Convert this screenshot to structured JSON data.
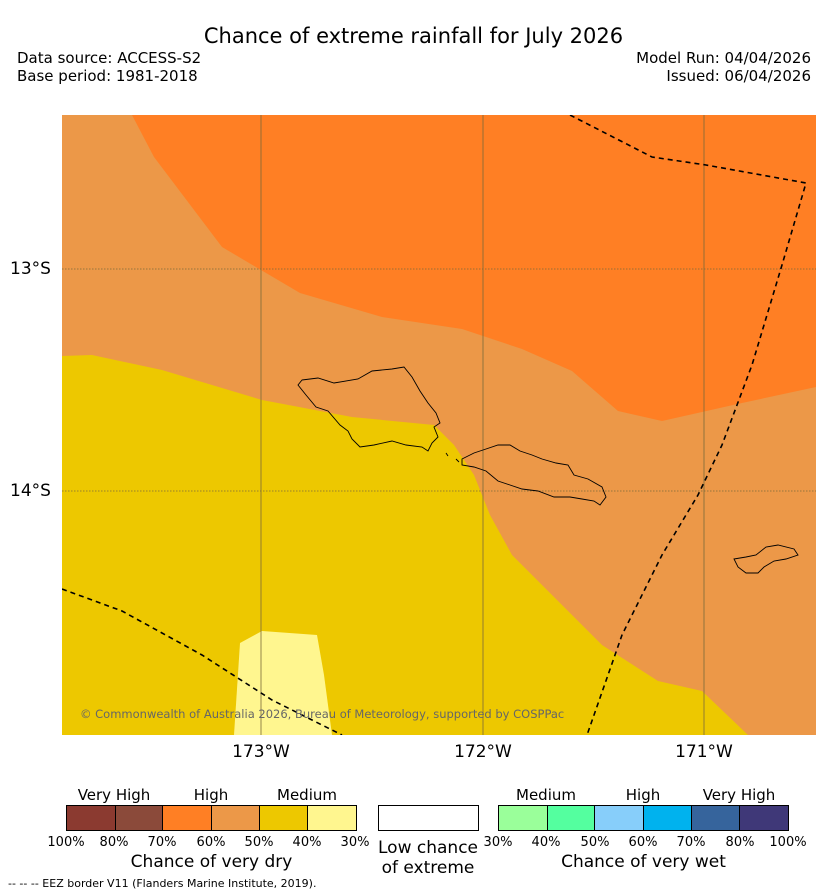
{
  "header": {
    "title": "Chance of extreme rainfall for July 2026",
    "data_source": "Data source: ACCESS-S2",
    "base_period": "Base period: 1981-2018",
    "model_run": "Model Run: 04/04/2026",
    "issued": "Issued: 06/04/2026"
  },
  "map": {
    "lat_labels": [
      "13°S",
      "14°S"
    ],
    "lon_labels": [
      "173°W",
      "172°W",
      "171°W"
    ],
    "copyright": "© Commonwealth of Australia 2026, Bureau of Meteorology, supported by COSPPac",
    "colors": {
      "very_high_dry_80": "#8B3A30",
      "very_high_dry_70": "#8B4A3A",
      "high_dry_60": "#FF7F24",
      "high_dry_50": "#EC9848",
      "medium_dry_40": "#EDC800",
      "medium_dry_30": "#FFF68F",
      "low": "#FFFFFF",
      "medium_wet_40": "#9AFF9A",
      "medium_wet_50": "#54FF9F",
      "high_wet_60": "#87CEFA",
      "high_wet_70": "#00B2EE",
      "very_high_wet_80": "#36649C",
      "very_high_wet_100": "#3F3878"
    }
  },
  "legend": {
    "dry": {
      "categories": [
        "Very High",
        "High",
        "Medium"
      ],
      "ticks": [
        "100%",
        "80%",
        "70%",
        "60%",
        "50%",
        "40%",
        "30%"
      ],
      "title": "Chance of very dry",
      "swatches": [
        "#8B3A30",
        "#8B4A3A",
        "#FF7F24",
        "#EC9848",
        "#EDC800",
        "#FFF68F"
      ]
    },
    "low": {
      "line1": "Low chance",
      "line2": "of extreme"
    },
    "wet": {
      "categories": [
        "Medium",
        "High",
        "Very High"
      ],
      "ticks": [
        "30%",
        "40%",
        "50%",
        "60%",
        "70%",
        "80%",
        "100%"
      ],
      "title": "Chance of very wet",
      "swatches": [
        "#9AFF9A",
        "#54FF9F",
        "#87CEFA",
        "#00B2EE",
        "#36649C",
        "#3F3878"
      ]
    },
    "eez_note": "--  --  -- EEZ border V11 (Flanders Marine Institute, 2019)."
  }
}
